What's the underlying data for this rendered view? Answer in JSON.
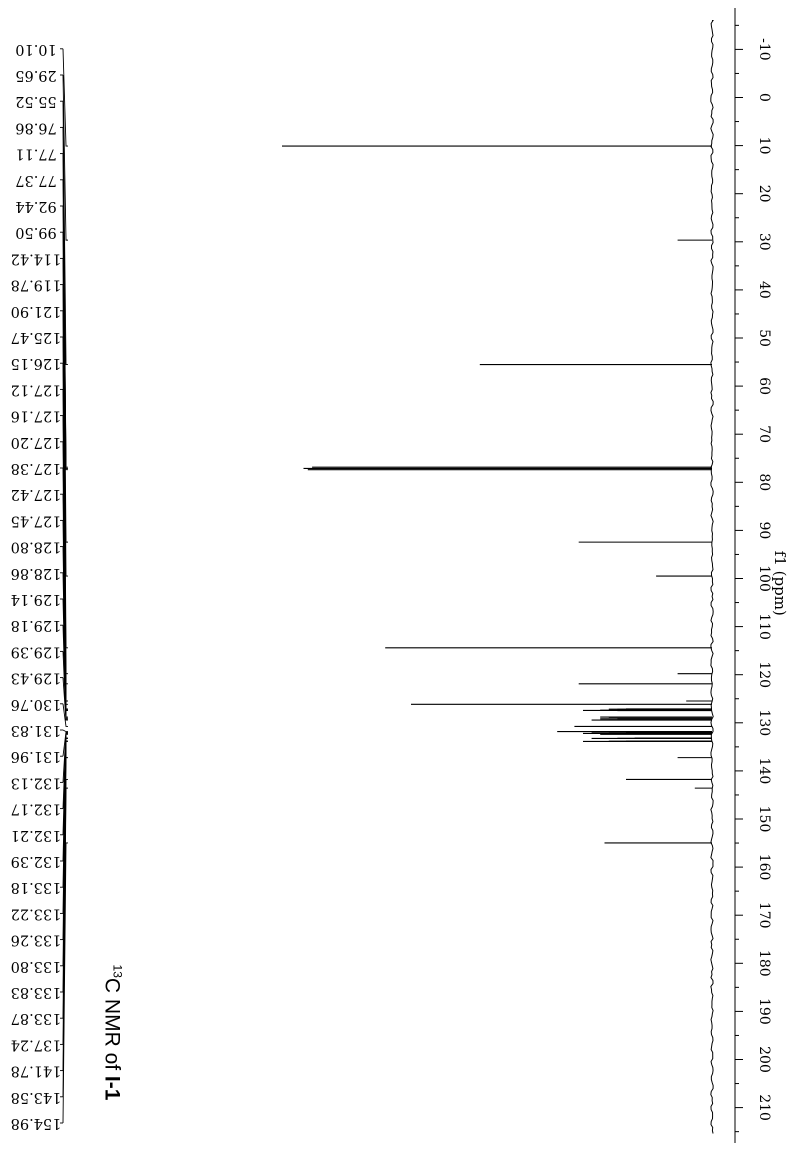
{
  "chart_data": {
    "type": "nmr_spectrum",
    "title_sup": "13",
    "title_main": "C NMR of ",
    "title_bold": "I-1",
    "xlabel": "f1 (ppm)",
    "xlim": [
      -16,
      216
    ],
    "x_ticks": [
      -10,
      0,
      10,
      20,
      30,
      40,
      50,
      60,
      70,
      80,
      90,
      100,
      110,
      120,
      130,
      140,
      150,
      160,
      170,
      180,
      190,
      200,
      210
    ],
    "peak_labels": [
      "154.98",
      "143.58",
      "141.78",
      "137.24",
      "133.87",
      "133.83",
      "133.80",
      "133.26",
      "133.22",
      "133.18",
      "132.39",
      "132.21",
      "132.17",
      "132.13",
      "131.96",
      "131.83",
      "130.76",
      "129.43",
      "129.39",
      "129.18",
      "129.14",
      "128.86",
      "128.80",
      "127.45",
      "127.42",
      "127.38",
      "127.20",
      "127.16",
      "127.12",
      "126.15",
      "125.47",
      "121.90",
      "119.78",
      "114.42",
      "99.50",
      "92.44",
      "77.37",
      "77.11",
      "76.86",
      "55.52",
      "29.65",
      "10.10"
    ],
    "peaks": [
      {
        "ppm": 154.98,
        "intensity": 0.25
      },
      {
        "ppm": 143.58,
        "intensity": 0.04
      },
      {
        "ppm": 141.78,
        "intensity": 0.2
      },
      {
        "ppm": 137.24,
        "intensity": 0.08
      },
      {
        "ppm": 133.87,
        "intensity": 0.3
      },
      {
        "ppm": 133.83,
        "intensity": 0.24
      },
      {
        "ppm": 133.8,
        "intensity": 0.2
      },
      {
        "ppm": 133.26,
        "intensity": 0.28
      },
      {
        "ppm": 133.22,
        "intensity": 0.22
      },
      {
        "ppm": 133.18,
        "intensity": 0.18
      },
      {
        "ppm": 132.39,
        "intensity": 0.26
      },
      {
        "ppm": 132.21,
        "intensity": 0.3
      },
      {
        "ppm": 132.17,
        "intensity": 0.24
      },
      {
        "ppm": 132.13,
        "intensity": 0.2
      },
      {
        "ppm": 131.96,
        "intensity": 0.28
      },
      {
        "ppm": 131.83,
        "intensity": 0.36
      },
      {
        "ppm": 130.76,
        "intensity": 0.32
      },
      {
        "ppm": 129.43,
        "intensity": 0.28
      },
      {
        "ppm": 129.39,
        "intensity": 0.24
      },
      {
        "ppm": 129.18,
        "intensity": 0.26
      },
      {
        "ppm": 129.14,
        "intensity": 0.22
      },
      {
        "ppm": 128.86,
        "intensity": 0.24
      },
      {
        "ppm": 128.8,
        "intensity": 0.26
      },
      {
        "ppm": 127.45,
        "intensity": 0.22
      },
      {
        "ppm": 127.42,
        "intensity": 0.3
      },
      {
        "ppm": 127.38,
        "intensity": 0.26
      },
      {
        "ppm": 127.2,
        "intensity": 0.22
      },
      {
        "ppm": 127.16,
        "intensity": 0.24
      },
      {
        "ppm": 127.12,
        "intensity": 0.2
      },
      {
        "ppm": 126.15,
        "intensity": 0.7
      },
      {
        "ppm": 125.47,
        "intensity": 0.06
      },
      {
        "ppm": 121.9,
        "intensity": 0.31
      },
      {
        "ppm": 119.78,
        "intensity": 0.08
      },
      {
        "ppm": 114.42,
        "intensity": 0.76
      },
      {
        "ppm": 99.5,
        "intensity": 0.13
      },
      {
        "ppm": 92.44,
        "intensity": 0.31
      },
      {
        "ppm": 77.37,
        "intensity": 0.94
      },
      {
        "ppm": 77.11,
        "intensity": 0.95
      },
      {
        "ppm": 76.86,
        "intensity": 0.93
      },
      {
        "ppm": 55.52,
        "intensity": 0.54
      },
      {
        "ppm": 29.65,
        "intensity": 0.08
      },
      {
        "ppm": 10.1,
        "intensity": 1.0
      }
    ]
  }
}
